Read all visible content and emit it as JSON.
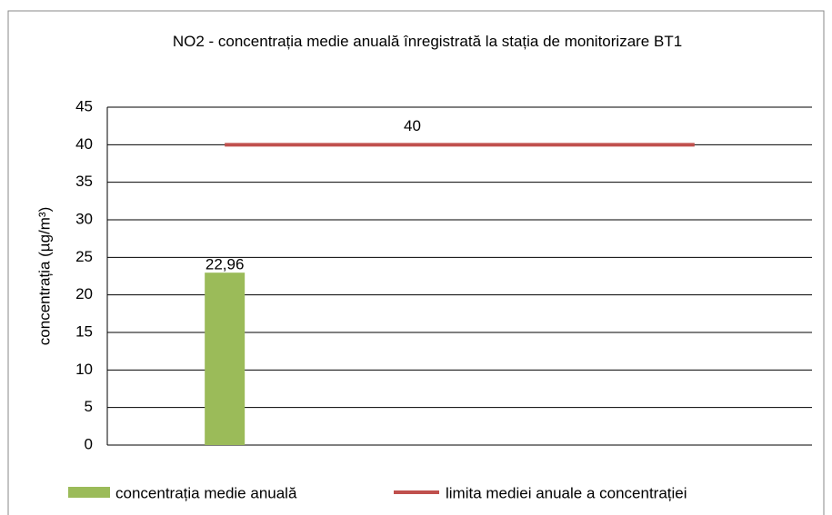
{
  "chart_data": {
    "type": "bar_line",
    "title": "NO2 - concentrația  medie anuală înregistrată  la stația de monitorizare BT1",
    "y_label": "concentrația  (µg/m³)",
    "categories": [
      null,
      null,
      null
    ],
    "series": [
      {
        "name": "concentrația  medie anuală",
        "type": "bar",
        "color": "#9bbb59",
        "values": [
          22.96,
          null,
          null
        ],
        "value_labels": [
          "22,96",
          null,
          null
        ]
      },
      {
        "name": "limita mediei anuale  a concentrației",
        "type": "line",
        "color": "#c0504d",
        "values": [
          40,
          40,
          40
        ],
        "value_labels": [
          null,
          "40",
          null
        ]
      }
    ],
    "ylim": [
      0,
      45
    ],
    "yticks": [
      0,
      5,
      10,
      15,
      20,
      25,
      30,
      35,
      40,
      45
    ],
    "grid": true,
    "legend": "bottom"
  }
}
